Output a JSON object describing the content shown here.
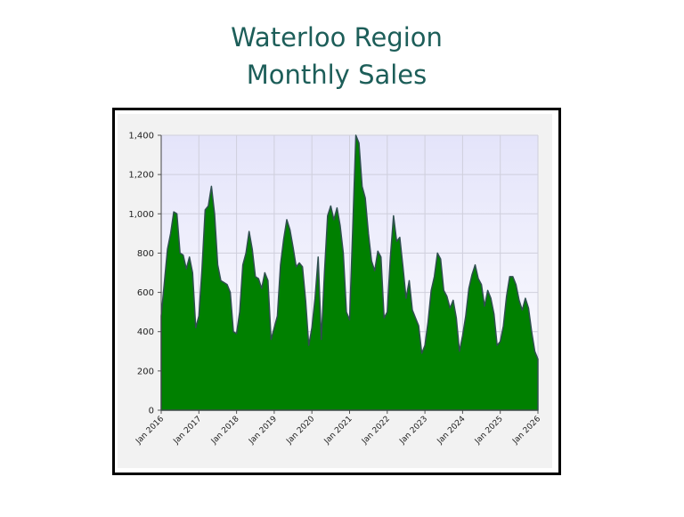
{
  "chart_data": {
    "type": "area",
    "title": [
      "Waterloo Region",
      "Monthly Sales"
    ],
    "x": [
      "2016-01",
      "2016-02",
      "2016-03",
      "2016-04",
      "2016-05",
      "2016-06",
      "2016-07",
      "2016-08",
      "2016-09",
      "2016-10",
      "2016-11",
      "2016-12",
      "2017-01",
      "2017-02",
      "2017-03",
      "2017-04",
      "2017-05",
      "2017-06",
      "2017-07",
      "2017-08",
      "2017-09",
      "2017-10",
      "2017-11",
      "2017-12",
      "2018-01",
      "2018-02",
      "2018-03",
      "2018-04",
      "2018-05",
      "2018-06",
      "2018-07",
      "2018-08",
      "2018-09",
      "2018-10",
      "2018-11",
      "2018-12",
      "2019-01",
      "2019-02",
      "2019-03",
      "2019-04",
      "2019-05",
      "2019-06",
      "2019-07",
      "2019-08",
      "2019-09",
      "2019-10",
      "2019-11",
      "2019-12",
      "2020-01",
      "2020-02",
      "2020-03",
      "2020-04",
      "2020-05",
      "2020-06",
      "2020-07",
      "2020-08",
      "2020-09",
      "2020-10",
      "2020-11",
      "2020-12",
      "2021-01",
      "2021-02",
      "2021-03",
      "2021-04",
      "2021-05",
      "2021-06",
      "2021-07",
      "2021-08",
      "2021-09",
      "2021-10",
      "2021-11",
      "2021-12",
      "2022-01",
      "2022-02",
      "2022-03",
      "2022-04",
      "2022-05",
      "2022-06",
      "2022-07",
      "2022-08",
      "2022-09",
      "2022-10",
      "2022-11",
      "2022-12",
      "2023-01",
      "2023-02",
      "2023-03",
      "2023-04",
      "2023-05",
      "2023-06",
      "2023-07",
      "2023-08",
      "2023-09",
      "2023-10",
      "2023-11",
      "2023-12",
      "2024-01",
      "2024-02",
      "2024-03",
      "2024-04",
      "2024-05",
      "2024-06",
      "2024-07",
      "2024-08",
      "2024-09",
      "2024-10",
      "2024-11",
      "2024-12",
      "2025-01",
      "2025-02",
      "2025-03",
      "2025-04",
      "2025-05",
      "2025-06",
      "2025-07",
      "2025-08",
      "2025-09",
      "2025-10",
      "2025-11",
      "2025-12",
      "2026-01"
    ],
    "values": [
      480,
      650,
      820,
      900,
      1010,
      1000,
      800,
      790,
      720,
      780,
      700,
      420,
      480,
      720,
      1020,
      1040,
      1140,
      1000,
      740,
      660,
      650,
      640,
      600,
      400,
      390,
      500,
      740,
      800,
      910,
      820,
      680,
      670,
      620,
      700,
      660,
      360,
      420,
      480,
      740,
      870,
      970,
      920,
      830,
      730,
      750,
      730,
      560,
      330,
      420,
      570,
      780,
      360,
      700,
      990,
      1040,
      970,
      1030,
      940,
      800,
      500,
      460,
      920,
      1400,
      1360,
      1140,
      1080,
      900,
      760,
      710,
      810,
      780,
      470,
      500,
      780,
      990,
      860,
      880,
      730,
      570,
      660,
      510,
      470,
      430,
      290,
      330,
      450,
      610,
      680,
      800,
      770,
      610,
      580,
      520,
      560,
      470,
      300,
      380,
      480,
      620,
      690,
      740,
      670,
      640,
      530,
      610,
      570,
      490,
      330,
      350,
      430,
      580,
      680,
      680,
      640,
      560,
      510,
      570,
      520,
      400,
      300,
      260
    ],
    "color": "#008000",
    "line_color": "#2f4f4f",
    "ylim": [
      0,
      1400
    ],
    "yticks": [
      0,
      200,
      400,
      600,
      800,
      {
        "value": 1000,
        "label": "1,000"
      },
      {
        "value": 1200,
        "label": "1,200"
      },
      {
        "value": 1400,
        "label": "1,400"
      }
    ],
    "xticks": [
      {
        "value": "2016-01",
        "label": "Jan 2016"
      },
      {
        "value": "2017-01",
        "label": "Jan 2017"
      },
      {
        "value": "2018-01",
        "label": "Jan 2018"
      },
      {
        "value": "2019-01",
        "label": "Jan 2019"
      },
      {
        "value": "2020-01",
        "label": "Jan 2020"
      },
      {
        "value": "2021-01",
        "label": "Jan 2021"
      },
      {
        "value": "2022-01",
        "label": "Jan 2022"
      },
      {
        "value": "2023-01",
        "label": "Jan 2023"
      },
      {
        "value": "2024-01",
        "label": "Jan 2024"
      },
      {
        "value": "2025-01",
        "label": "Jan 2025"
      },
      {
        "value": "2026-01",
        "label": "Jan 2026"
      }
    ],
    "grid": true
  }
}
